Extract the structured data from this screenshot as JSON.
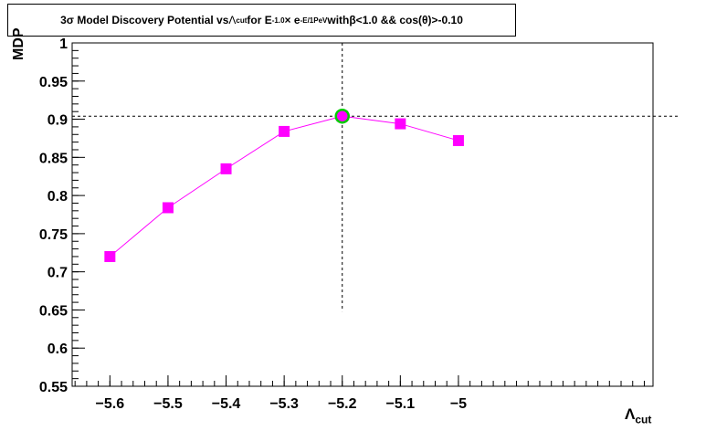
{
  "chart_data": {
    "type": "scatter",
    "title_parts": {
      "p1": "3σ Model Discovery Potential vs ",
      "lambda": "Λ",
      "cut": "cut",
      "p2": " for E",
      "exp1": "-1.0",
      "times": " × e",
      "exp2": "-E/1PeV",
      "p3": " with ",
      "beta": "β<1.0 && cos(θ)>-0.10"
    },
    "ylabel": "MDP",
    "xlabel_main": "Λ",
    "xlabel_sub": "cut",
    "xlim": [
      -5.665,
      -4.665
    ],
    "ylim": [
      0.55,
      1.0
    ],
    "xticks": [
      -5.6,
      -5.5,
      -5.4,
      -5.3,
      -5.2,
      -5.1,
      -5.0
    ],
    "xtick_labels": [
      "−5.6",
      "−5.5",
      "−5.4",
      "−5.3",
      "−5.2",
      "−5.1",
      "−5"
    ],
    "yticks": [
      0.55,
      0.6,
      0.65,
      0.7,
      0.75,
      0.8,
      0.85,
      0.9,
      0.95,
      1.0
    ],
    "ytick_labels": [
      "0.55",
      "0.6",
      "0.65",
      "0.7",
      "0.75",
      "0.8",
      "0.85",
      "0.9",
      "0.95",
      "1"
    ],
    "series": [
      {
        "x": [
          -5.6,
          -5.5,
          -5.4,
          -5.3,
          -5.2,
          -5.1,
          -5.0
        ],
        "y": [
          0.72,
          0.784,
          0.835,
          0.884,
          0.904,
          0.894,
          0.872
        ],
        "color": "#ff00ff"
      }
    ],
    "optimum": {
      "x": -5.2,
      "y": 0.904,
      "ring_color": "#00cc00"
    },
    "crosshair": {
      "x": -5.2,
      "y": 0.904,
      "y_low": 0.648
    },
    "grid": false
  }
}
